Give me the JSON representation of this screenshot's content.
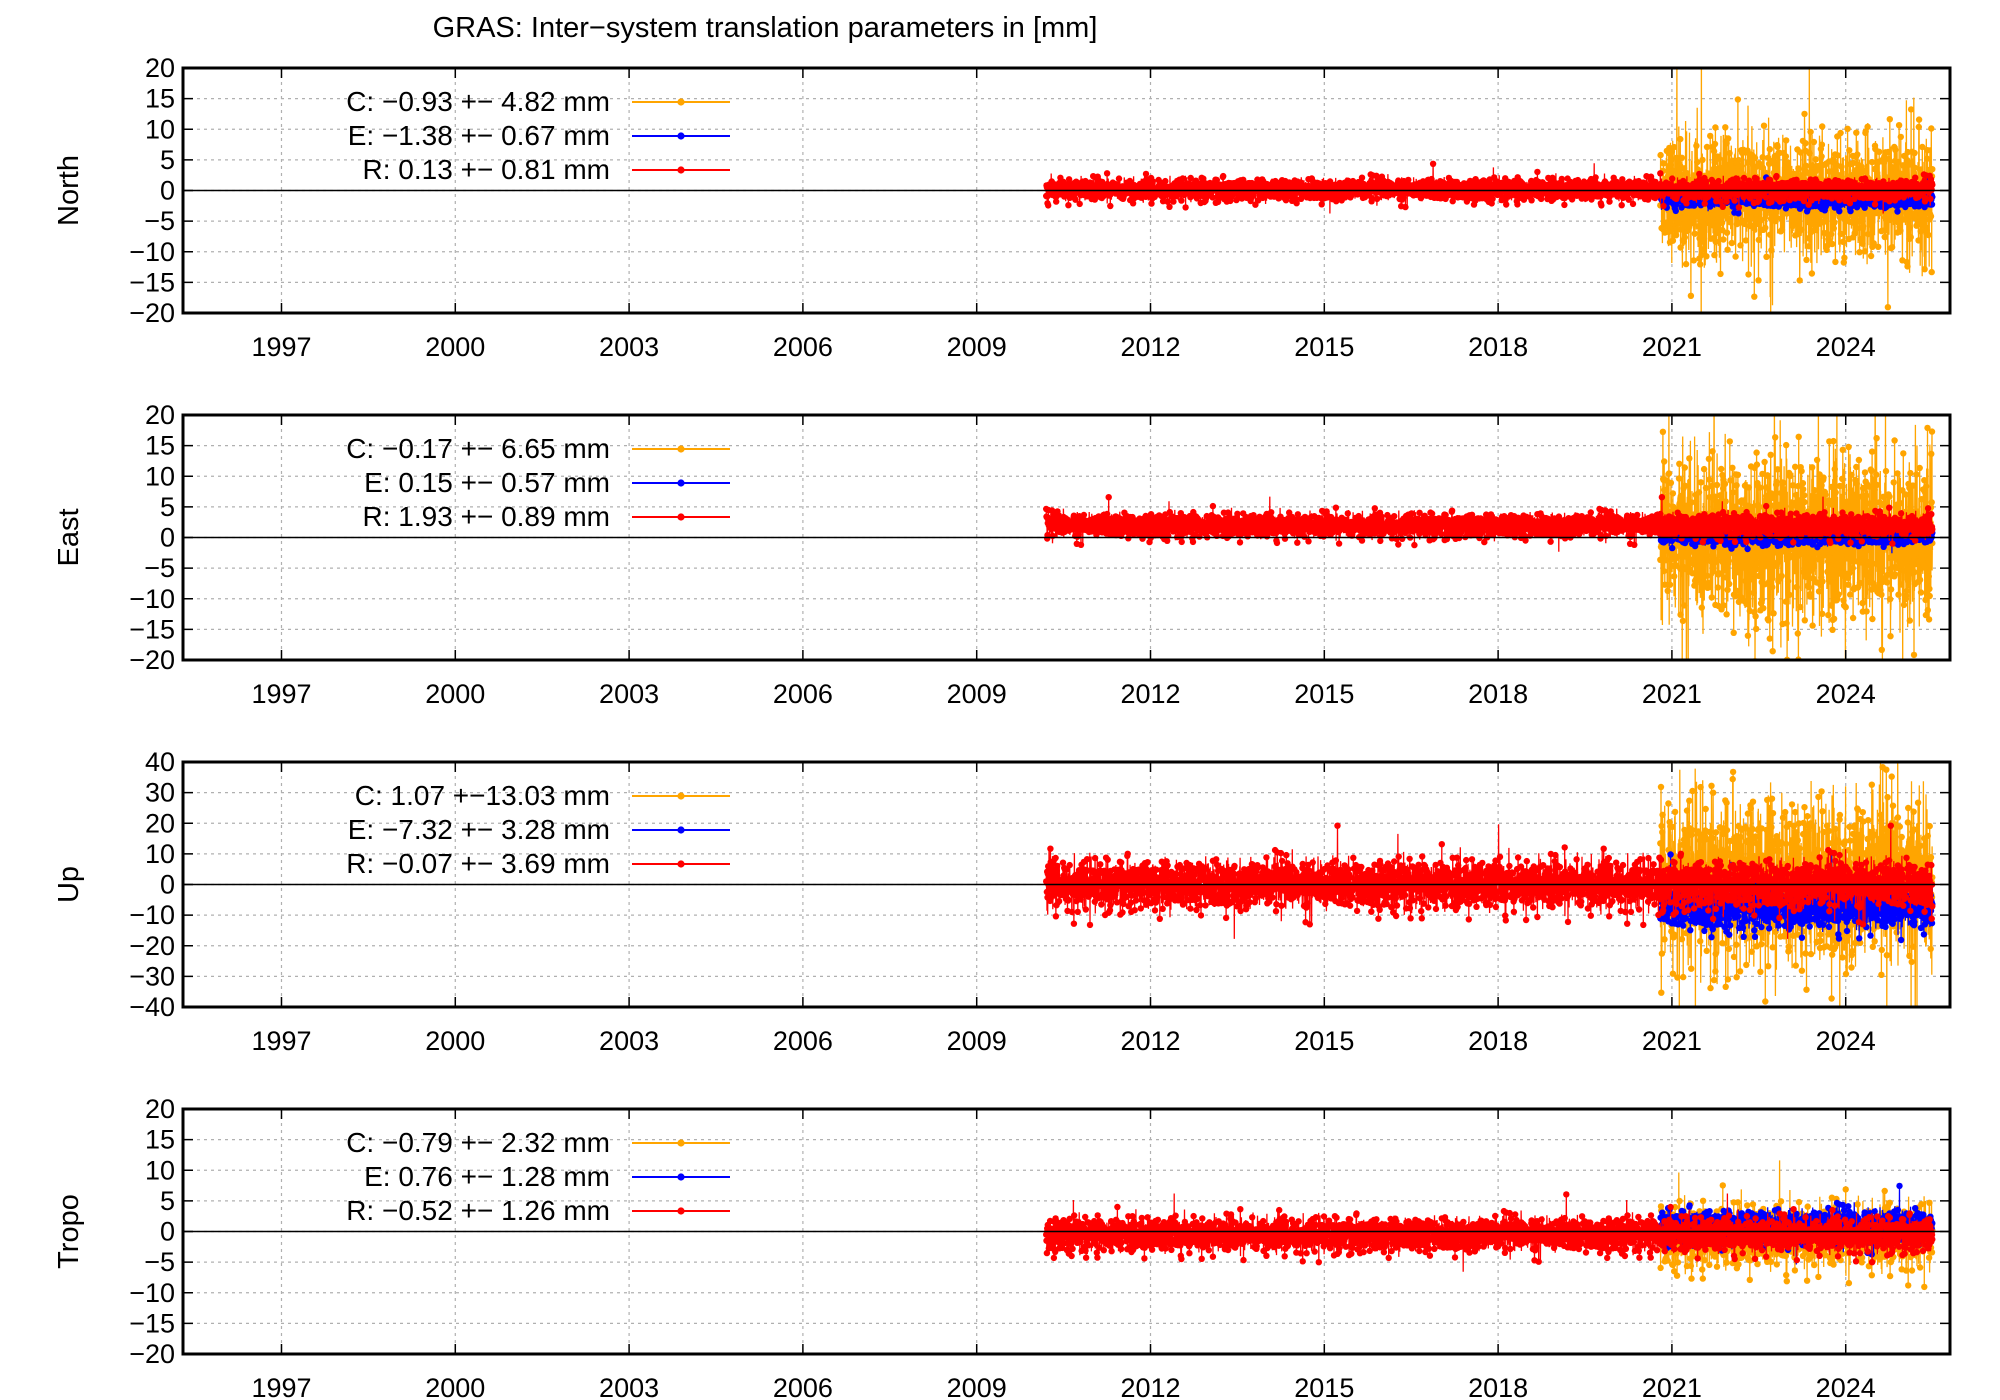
{
  "title": "GRAS: Inter−system translation parameters in [mm]",
  "colors": {
    "C": "#ffa500",
    "E": "#0000ff",
    "R": "#ff0000",
    "grid": "#b0b0b0",
    "axis": "#000000"
  },
  "chart_data": [
    {
      "type": "scatter",
      "ylabel": "North",
      "ylim": [
        -20,
        20
      ],
      "yticks": [
        20,
        15,
        10,
        5,
        0,
        -5,
        -10,
        -15,
        -20
      ],
      "xlim": [
        1995.3,
        2025.8
      ],
      "xticks": [
        1997,
        2000,
        2003,
        2006,
        2009,
        2012,
        2015,
        2018,
        2021,
        2024
      ],
      "grid": true,
      "legend_position": "top-left",
      "series": [
        {
          "name": "C",
          "legend": "C:  −0.93 +− 4.82 mm",
          "color": "#ffa500",
          "start": 2020.8,
          "end": 2025.5,
          "mean": -0.93,
          "sd": 4.82
        },
        {
          "name": "E",
          "legend": "E:  −1.38 +− 0.67 mm",
          "color": "#0000ff",
          "start": 2020.8,
          "end": 2025.5,
          "mean": -1.38,
          "sd": 0.67
        },
        {
          "name": "R",
          "legend": "R:  0.13 +− 0.81 mm",
          "color": "#ff0000",
          "start": 2010.2,
          "end": 2025.5,
          "mean": 0.13,
          "sd": 0.81
        }
      ]
    },
    {
      "type": "scatter",
      "ylabel": "East",
      "ylim": [
        -20,
        20
      ],
      "yticks": [
        20,
        15,
        10,
        5,
        0,
        -5,
        -10,
        -15,
        -20
      ],
      "xlim": [
        1995.3,
        2025.8
      ],
      "xticks": [
        1997,
        2000,
        2003,
        2006,
        2009,
        2012,
        2015,
        2018,
        2021,
        2024
      ],
      "grid": true,
      "legend_position": "top-left",
      "series": [
        {
          "name": "C",
          "legend": "C:  −0.17 +− 6.65 mm",
          "color": "#ffa500",
          "start": 2020.8,
          "end": 2025.5,
          "mean": -0.17,
          "sd": 6.65
        },
        {
          "name": "E",
          "legend": "E:  0.15 +− 0.57 mm",
          "color": "#0000ff",
          "start": 2020.8,
          "end": 2025.5,
          "mean": 0.15,
          "sd": 0.57
        },
        {
          "name": "R",
          "legend": "R:  1.93 +− 0.89 mm",
          "color": "#ff0000",
          "start": 2010.2,
          "end": 2025.5,
          "mean": 1.93,
          "sd": 0.89
        }
      ]
    },
    {
      "type": "scatter",
      "ylabel": "Up",
      "ylim": [
        -40,
        40
      ],
      "yticks": [
        40,
        30,
        20,
        10,
        0,
        -10,
        -20,
        -30,
        -40
      ],
      "xlim": [
        1995.3,
        2025.8
      ],
      "xticks": [
        1997,
        2000,
        2003,
        2006,
        2009,
        2012,
        2015,
        2018,
        2021,
        2024
      ],
      "grid": true,
      "legend_position": "top-left",
      "series": [
        {
          "name": "C",
          "legend": "C:  1.07 +−13.03 mm",
          "color": "#ffa500",
          "start": 2020.8,
          "end": 2025.5,
          "mean": 1.07,
          "sd": 13.03
        },
        {
          "name": "E",
          "legend": "E:  −7.32 +− 3.28 mm",
          "color": "#0000ff",
          "start": 2020.8,
          "end": 2025.5,
          "mean": -7.32,
          "sd": 3.28
        },
        {
          "name": "R",
          "legend": "R:  −0.07 +− 3.69 mm",
          "color": "#ff0000",
          "start": 2010.2,
          "end": 2025.5,
          "mean": -0.07,
          "sd": 3.69
        }
      ]
    },
    {
      "type": "scatter",
      "ylabel": "Tropo",
      "ylim": [
        -20,
        20
      ],
      "yticks": [
        20,
        15,
        10,
        5,
        0,
        -5,
        -10,
        -15,
        -20
      ],
      "xlim": [
        1995.3,
        2025.8
      ],
      "xticks": [
        1997,
        2000,
        2003,
        2006,
        2009,
        2012,
        2015,
        2018,
        2021,
        2024
      ],
      "grid": true,
      "legend_position": "top-left",
      "series": [
        {
          "name": "C",
          "legend": "C:  −0.79 +− 2.32 mm",
          "color": "#ffa500",
          "start": 2020.8,
          "end": 2025.5,
          "mean": -0.79,
          "sd": 2.32
        },
        {
          "name": "E",
          "legend": "E:  0.76 +− 1.28 mm",
          "color": "#0000ff",
          "start": 2020.8,
          "end": 2025.5,
          "mean": 0.76,
          "sd": 1.28
        },
        {
          "name": "R",
          "legend": "R:  −0.52 +− 1.26 mm",
          "color": "#ff0000",
          "start": 2010.2,
          "end": 2025.5,
          "mean": -0.52,
          "sd": 1.26
        }
      ]
    }
  ]
}
